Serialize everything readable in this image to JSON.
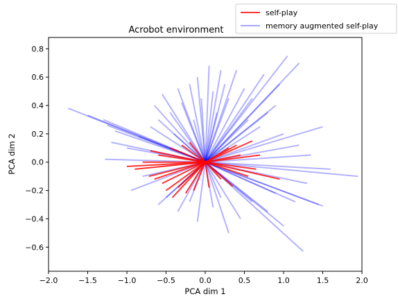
{
  "chart_data": {
    "type": "line",
    "title": "Acrobot environment",
    "xlabel": "PCA dim 1",
    "ylabel": "PCA dim 2",
    "xlim": [
      -2.0,
      2.0
    ],
    "ylim": [
      -0.77,
      0.88
    ],
    "xticks": [
      "−2.0",
      "−1.5",
      "−1.0",
      "−0.5",
      "0.0",
      "0.5",
      "1.0",
      "1.5",
      "2.0"
    ],
    "yticks": [
      "−0.6",
      "−0.4",
      "−0.2",
      "0.0",
      "0.2",
      "0.4",
      "0.6",
      "0.8"
    ],
    "xtick_values": [
      -2.0,
      -1.5,
      -1.0,
      -0.5,
      0.0,
      0.5,
      1.0,
      1.5,
      2.0
    ],
    "ytick_values": [
      -0.6,
      -0.4,
      -0.2,
      0.0,
      0.2,
      0.4,
      0.6,
      0.8
    ],
    "grid": false,
    "legend_position": "top-right, above the plot",
    "series": [
      {
        "name": "self-play",
        "color": "#ff0000",
        "alpha": 0.8,
        "origin": [
          0.0,
          0.0
        ],
        "endpoints": [
          [
            -0.42,
            -0.25
          ],
          [
            -0.5,
            -0.2
          ],
          [
            -0.65,
            -0.12
          ],
          [
            -0.72,
            -0.1
          ],
          [
            -0.55,
            -0.15
          ],
          [
            -0.35,
            -0.18
          ],
          [
            -0.25,
            -0.22
          ],
          [
            -1.0,
            -0.03
          ],
          [
            -0.8,
            0.0
          ],
          [
            -0.6,
            0.05
          ],
          [
            -0.45,
            0.1
          ],
          [
            -0.7,
            0.08
          ],
          [
            -0.3,
            0.12
          ],
          [
            0.6,
            0.15
          ],
          [
            0.7,
            0.05
          ],
          [
            0.95,
            -0.12
          ],
          [
            0.55,
            -0.1
          ],
          [
            0.35,
            -0.17
          ],
          [
            0.3,
            0.1
          ],
          [
            0.2,
            -0.12
          ],
          [
            -0.15,
            -0.2
          ],
          [
            0.05,
            -0.18
          ],
          [
            0.4,
            0.12
          ],
          [
            0.65,
            -0.05
          ],
          [
            -0.9,
            -0.05
          ],
          [
            -0.2,
            0.14
          ],
          [
            0.45,
            0.05
          ]
        ]
      },
      {
        "name": "memory augmented self-play",
        "color": "#0000ff",
        "alpha": 0.3,
        "origin": [
          0.0,
          0.0
        ],
        "endpoints": [
          [
            -1.75,
            0.38
          ],
          [
            -1.5,
            0.33
          ],
          [
            -1.3,
            0.3
          ],
          [
            -1.25,
            0.26
          ],
          [
            -1.15,
            0.22
          ],
          [
            -1.2,
            0.14
          ],
          [
            -1.28,
            0.02
          ],
          [
            -1.0,
            0.1
          ],
          [
            -0.85,
            0.18
          ],
          [
            -0.7,
            0.25
          ],
          [
            -0.65,
            0.4
          ],
          [
            -0.6,
            0.3
          ],
          [
            -0.55,
            0.48
          ],
          [
            -0.45,
            0.35
          ],
          [
            -0.35,
            0.52
          ],
          [
            -0.3,
            0.42
          ],
          [
            -0.2,
            0.55
          ],
          [
            -0.1,
            0.6
          ],
          [
            -0.05,
            0.45
          ],
          [
            0.05,
            0.68
          ],
          [
            0.1,
            0.5
          ],
          [
            0.2,
            0.65
          ],
          [
            0.25,
            0.55
          ],
          [
            0.3,
            0.45
          ],
          [
            0.4,
            0.65
          ],
          [
            0.5,
            0.52
          ],
          [
            0.6,
            0.45
          ],
          [
            0.75,
            0.62
          ],
          [
            0.8,
            0.35
          ],
          [
            0.9,
            0.4
          ],
          [
            0.95,
            0.55
          ],
          [
            1.05,
            0.75
          ],
          [
            1.2,
            0.7
          ],
          [
            0.7,
            0.25
          ],
          [
            1.0,
            0.2
          ],
          [
            1.2,
            0.12
          ],
          [
            1.5,
            0.25
          ],
          [
            1.35,
            0.05
          ],
          [
            1.95,
            -0.1
          ],
          [
            1.6,
            -0.05
          ],
          [
            1.3,
            -0.15
          ],
          [
            1.45,
            -0.3
          ],
          [
            1.15,
            -0.28
          ],
          [
            1.5,
            -0.31
          ],
          [
            0.9,
            -0.22
          ],
          [
            1.25,
            -0.63
          ],
          [
            1.0,
            -0.45
          ],
          [
            0.8,
            -0.35
          ],
          [
            0.6,
            -0.28
          ],
          [
            0.45,
            -0.4
          ],
          [
            0.3,
            -0.5
          ],
          [
            0.1,
            -0.32
          ],
          [
            -0.1,
            -0.42
          ],
          [
            -0.2,
            -0.28
          ],
          [
            -0.35,
            -0.35
          ],
          [
            -0.5,
            -0.25
          ],
          [
            -0.6,
            -0.3
          ],
          [
            -0.8,
            -0.1
          ],
          [
            -0.95,
            -0.2
          ],
          [
            -0.3,
            -0.15
          ],
          [
            0.2,
            -0.25
          ],
          [
            -0.4,
            0.2
          ],
          [
            0.55,
            0.3
          ],
          [
            -0.15,
            0.3
          ],
          [
            0.15,
            0.35
          ]
        ]
      }
    ]
  }
}
